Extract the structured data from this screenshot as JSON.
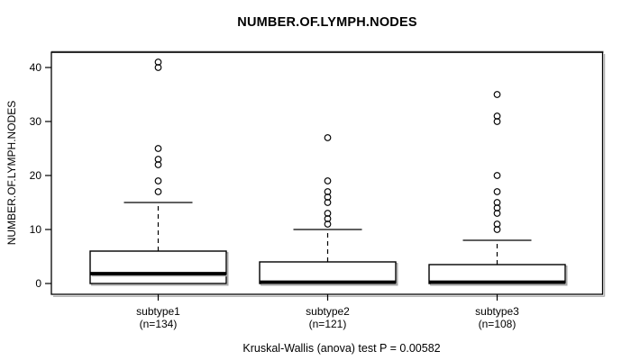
{
  "page": {
    "background": "#ffffff",
    "foreground": "#000000",
    "shadow_color": "#a8a8a8"
  },
  "chart_data": {
    "type": "boxplot",
    "title": "NUMBER.OF.LYMPH.NODES",
    "xlabel": "",
    "ylabel": "NUMBER.OF.LYMPH.NODES",
    "ylim": [
      -2.1,
      43.3
    ],
    "y_ticks": [
      0,
      10,
      20,
      30,
      40
    ],
    "grid": false,
    "legend": "none",
    "annotation": "Kruskal-Wallis (anova) test P = 0.00582",
    "categories": [
      "subtype1",
      "subtype2",
      "subtype3"
    ],
    "groups": [
      {
        "label": "subtype1",
        "sublabel": "(n=134)",
        "n": 134,
        "q1": 0,
        "median": 2,
        "q3": 6,
        "whisker_low": 0,
        "whisker_high": 15,
        "outliers": [
          17,
          19,
          22,
          23,
          25,
          40,
          41
        ]
      },
      {
        "label": "subtype2",
        "sublabel": "(n=121)",
        "n": 121,
        "q1": 0,
        "median": 0,
        "q3": 4,
        "whisker_low": 0,
        "whisker_high": 10,
        "outliers": [
          11,
          12,
          13,
          15,
          16,
          17,
          19,
          27
        ]
      },
      {
        "label": "subtype3",
        "sublabel": "(n=108)",
        "n": 108,
        "q1": 0,
        "median": 0,
        "q3": 3.5,
        "whisker_low": 0,
        "whisker_high": 8,
        "outliers": [
          10,
          11,
          13,
          14,
          15,
          17,
          20,
          30,
          31,
          35
        ]
      }
    ],
    "style": {
      "box_fill": "#ffffff",
      "line_color": "#000000",
      "whisker_line_style": "dashed",
      "outlier_marker": "open-circle"
    }
  }
}
